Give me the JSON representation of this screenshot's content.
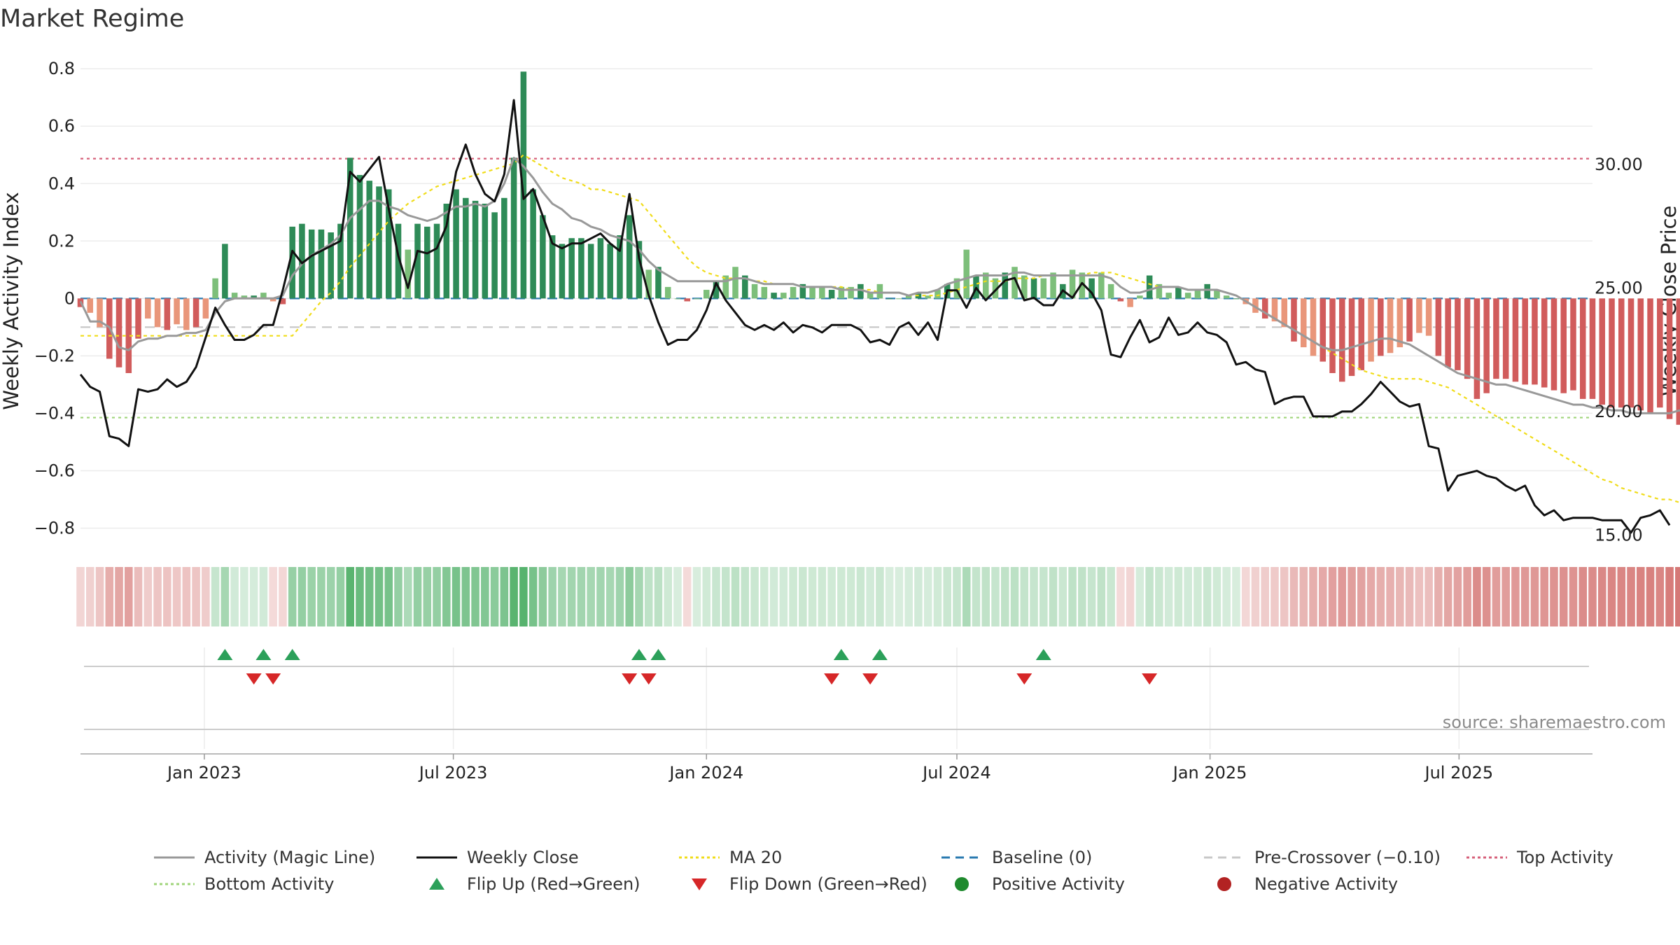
{
  "chart_data": {
    "type": "bar",
    "title": "Market Regime",
    "ylabel": "Weekly Activity Index",
    "y2label": "Weekly Close Price",
    "ylim": [
      -0.85,
      0.82
    ],
    "y2lim": [
      14.7,
      34.1
    ],
    "y_ticks": [
      -0.8,
      -0.6,
      -0.4,
      -0.2,
      0,
      0.2,
      0.4,
      0.6,
      0.8
    ],
    "y_tick_labels": [
      "−0.8",
      "−0.6",
      "−0.4",
      "−0.2",
      "0",
      "0.2",
      "0.4",
      "0.6",
      "0.8"
    ],
    "y2_ticks": [
      15,
      20,
      25,
      30
    ],
    "y2_tick_labels": [
      "15.00",
      "20.00",
      "25.00",
      "30.00"
    ],
    "x_range": [
      "2022-10-03",
      "2025-10-06"
    ],
    "x_ticks": [
      "2023-01-01",
      "2023-07-01",
      "2024-01-01",
      "2024-07-01",
      "2025-01-01",
      "2025-07-01"
    ],
    "x_tick_labels": [
      "Jan 2023",
      "Jul 2023",
      "Jan 2024",
      "Jul 2024",
      "Jan 2025",
      "Jul 2025"
    ],
    "grid": true,
    "legend_placement": "bottom",
    "reference_lines": [
      {
        "name": "Top Activity",
        "value": 0.487,
        "color": "#d6607a"
      },
      {
        "name": "Bottom Activity",
        "value": -0.415,
        "color": "#9fd47a"
      },
      {
        "name": "Pre-Crossover (−0.10)",
        "value": -0.1,
        "color": "#c8c8c8"
      },
      {
        "name": "Baseline (0)",
        "value": 0,
        "color": "#2a7ab0"
      }
    ],
    "week_start": "2022-10-03",
    "activity": [
      -0.03,
      -0.05,
      -0.1,
      -0.21,
      -0.24,
      -0.26,
      -0.14,
      -0.07,
      -0.1,
      -0.11,
      -0.09,
      -0.11,
      -0.1,
      -0.07,
      0.07,
      0.19,
      0.02,
      0.01,
      0.01,
      0.02,
      -0.01,
      -0.02,
      0.25,
      0.26,
      0.24,
      0.24,
      0.23,
      0.26,
      0.49,
      0.43,
      0.41,
      0.39,
      0.38,
      0.26,
      0.17,
      0.26,
      0.25,
      0.26,
      0.33,
      0.38,
      0.35,
      0.34,
      0.33,
      0.3,
      0.35,
      0.49,
      0.79,
      0.38,
      0.29,
      0.22,
      0.19,
      0.21,
      0.21,
      0.19,
      0.21,
      0.19,
      0.22,
      0.29,
      0.2,
      0.1,
      0.11,
      0.04,
      0.0,
      -0.01,
      0.0,
      0.03,
      0.06,
      0.08,
      0.11,
      0.08,
      0.05,
      0.04,
      0.02,
      0.02,
      0.04,
      0.05,
      0.04,
      0.04,
      0.03,
      0.04,
      0.04,
      0.05,
      0.02,
      0.05,
      0.0,
      0.0,
      0.01,
      0.02,
      0.01,
      0.03,
      0.05,
      0.07,
      0.17,
      0.08,
      0.09,
      0.07,
      0.09,
      0.11,
      0.08,
      0.07,
      0.07,
      0.09,
      0.05,
      0.1,
      0.09,
      0.07,
      0.09,
      0.05,
      -0.01,
      -0.03,
      0.01,
      0.08,
      0.05,
      0.02,
      0.04,
      0.02,
      0.03,
      0.05,
      0.03,
      0.01,
      0.0,
      -0.02,
      -0.05,
      -0.07,
      -0.08,
      -0.1,
      -0.15,
      -0.17,
      -0.2,
      -0.22,
      -0.26,
      -0.29,
      -0.27,
      -0.25,
      -0.22,
      -0.2,
      -0.19,
      -0.17,
      -0.15,
      -0.12,
      -0.13,
      -0.2,
      -0.24,
      -0.25,
      -0.28,
      -0.35,
      -0.33,
      -0.28,
      -0.28,
      -0.29,
      -0.3,
      -0.3,
      -0.31,
      -0.32,
      -0.33,
      -0.32,
      -0.35,
      -0.35,
      -0.37,
      -0.38,
      -0.38,
      -0.38,
      -0.39,
      -0.4,
      -0.38,
      -0.42,
      -0.44,
      -0.41,
      -0.42,
      -0.39,
      -0.38,
      -0.42
    ],
    "magic_line": [
      -0.01,
      -0.08,
      -0.08,
      -0.1,
      -0.17,
      -0.18,
      -0.15,
      -0.14,
      -0.14,
      -0.13,
      -0.13,
      -0.12,
      -0.12,
      -0.11,
      -0.05,
      -0.01,
      0.0,
      0.0,
      0.0,
      0.0,
      0.0,
      0.01,
      0.08,
      0.12,
      0.15,
      0.17,
      0.19,
      0.22,
      0.28,
      0.31,
      0.34,
      0.34,
      0.32,
      0.31,
      0.29,
      0.28,
      0.27,
      0.28,
      0.3,
      0.32,
      0.32,
      0.33,
      0.32,
      0.34,
      0.4,
      0.49,
      0.46,
      0.42,
      0.37,
      0.33,
      0.31,
      0.28,
      0.27,
      0.25,
      0.24,
      0.22,
      0.21,
      0.2,
      0.17,
      0.13,
      0.1,
      0.08,
      0.06,
      0.06,
      0.06,
      0.06,
      0.06,
      0.06,
      0.07,
      0.07,
      0.06,
      0.05,
      0.05,
      0.05,
      0.05,
      0.04,
      0.04,
      0.04,
      0.04,
      0.03,
      0.03,
      0.03,
      0.02,
      0.02,
      0.02,
      0.02,
      0.01,
      0.02,
      0.02,
      0.03,
      0.05,
      0.06,
      0.07,
      0.08,
      0.08,
      0.08,
      0.08,
      0.09,
      0.09,
      0.08,
      0.08,
      0.08,
      0.08,
      0.08,
      0.08,
      0.08,
      0.08,
      0.07,
      0.04,
      0.02,
      0.02,
      0.03,
      0.04,
      0.04,
      0.04,
      0.03,
      0.03,
      0.03,
      0.03,
      0.02,
      0.01,
      -0.01,
      -0.03,
      -0.05,
      -0.07,
      -0.09,
      -0.11,
      -0.13,
      -0.15,
      -0.17,
      -0.18,
      -0.18,
      -0.17,
      -0.16,
      -0.15,
      -0.14,
      -0.14,
      -0.15,
      -0.16,
      -0.18,
      -0.2,
      -0.22,
      -0.24,
      -0.26,
      -0.27,
      -0.28,
      -0.29,
      -0.3,
      -0.3,
      -0.31,
      -0.32,
      -0.33,
      -0.34,
      -0.35,
      -0.36,
      -0.37,
      -0.37,
      -0.38,
      -0.38,
      -0.39,
      -0.39,
      -0.4,
      -0.4,
      -0.4,
      -0.4,
      -0.4,
      -0.39,
      -0.4
    ],
    "ma20": [
      -0.13,
      -0.13,
      -0.13,
      -0.13,
      -0.13,
      -0.13,
      -0.13,
      -0.13,
      -0.13,
      -0.13,
      -0.13,
      -0.13,
      -0.13,
      -0.13,
      -0.13,
      -0.13,
      -0.13,
      -0.13,
      -0.13,
      -0.13,
      -0.13,
      -0.13,
      -0.13,
      -0.09,
      -0.05,
      -0.01,
      0.02,
      0.06,
      0.11,
      0.15,
      0.19,
      0.23,
      0.27,
      0.3,
      0.33,
      0.35,
      0.37,
      0.39,
      0.4,
      0.41,
      0.42,
      0.43,
      0.44,
      0.45,
      0.46,
      0.47,
      0.5,
      0.48,
      0.46,
      0.44,
      0.42,
      0.41,
      0.4,
      0.38,
      0.38,
      0.37,
      0.36,
      0.35,
      0.34,
      0.3,
      0.26,
      0.22,
      0.18,
      0.14,
      0.11,
      0.09,
      0.08,
      0.07,
      0.07,
      0.07,
      0.06,
      0.06,
      0.05,
      0.05,
      0.05,
      0.04,
      0.04,
      0.04,
      0.04,
      0.04,
      0.03,
      0.03,
      0.03,
      0.02,
      0.02,
      0.02,
      0.01,
      0.01,
      0.01,
      0.01,
      0.02,
      0.03,
      0.04,
      0.05,
      0.06,
      0.06,
      0.06,
      0.07,
      0.07,
      0.07,
      0.08,
      0.08,
      0.08,
      0.08,
      0.08,
      0.09,
      0.09,
      0.09,
      0.08,
      0.07,
      0.06,
      0.05,
      0.04,
      0.04,
      0.04,
      0.03,
      0.03,
      0.03,
      0.03,
      0.02,
      0.01,
      -0.01,
      -0.03,
      -0.05,
      -0.07,
      -0.09,
      -0.11,
      -0.13,
      -0.15,
      -0.17,
      -0.19,
      -0.21,
      -0.23,
      -0.25,
      -0.26,
      -0.27,
      -0.28,
      -0.28,
      -0.28,
      -0.28,
      -0.29,
      -0.3,
      -0.31,
      -0.33,
      -0.35,
      -0.37,
      -0.39,
      -0.41,
      -0.43,
      -0.45,
      -0.47,
      -0.49,
      -0.51,
      -0.53,
      -0.55,
      -0.57,
      -0.59,
      -0.61,
      -0.63,
      -0.64,
      -0.66,
      -0.67,
      -0.68,
      -0.69,
      -0.7,
      -0.7,
      -0.71,
      -0.72
    ],
    "weekly_close": [
      21.5,
      21.0,
      20.8,
      19.0,
      18.9,
      18.6,
      20.9,
      20.8,
      20.9,
      21.3,
      21.0,
      21.2,
      21.8,
      23.0,
      24.2,
      23.5,
      22.9,
      22.9,
      23.1,
      23.5,
      23.5,
      24.9,
      26.5,
      26.0,
      26.3,
      26.5,
      26.7,
      26.9,
      29.7,
      29.3,
      29.8,
      30.3,
      28.2,
      26.3,
      25.0,
      26.5,
      26.4,
      26.6,
      27.5,
      29.7,
      30.8,
      29.6,
      28.8,
      28.5,
      29.6,
      32.6,
      28.6,
      29.0,
      27.9,
      26.8,
      26.6,
      26.8,
      26.8,
      27.0,
      27.2,
      26.8,
      26.5,
      28.8,
      26.2,
      24.7,
      23.6,
      22.7,
      22.9,
      22.9,
      23.3,
      24.1,
      25.2,
      24.5,
      24.0,
      23.5,
      23.3,
      23.5,
      23.3,
      23.6,
      23.2,
      23.5,
      23.4,
      23.2,
      23.5,
      23.5,
      23.5,
      23.3,
      22.8,
      22.9,
      22.7,
      23.4,
      23.6,
      23.1,
      23.6,
      22.9,
      24.9,
      24.9,
      24.2,
      25.0,
      24.5,
      24.9,
      25.3,
      25.4,
      24.5,
      24.6,
      24.3,
      24.3,
      24.9,
      24.6,
      25.2,
      24.8,
      24.1,
      22.3,
      22.2,
      23.0,
      23.7,
      22.8,
      23.0,
      23.8,
      23.1,
      23.2,
      23.6,
      23.2,
      23.1,
      22.8,
      21.9,
      22.0,
      21.7,
      21.6,
      20.3,
      20.5,
      20.6,
      20.6,
      19.8,
      19.8,
      19.8,
      20.0,
      20.0,
      20.3,
      20.7,
      21.2,
      20.8,
      20.4,
      20.2,
      20.3,
      18.6,
      18.5,
      16.8,
      17.4,
      17.5,
      17.6,
      17.4,
      17.3,
      17.0,
      16.8,
      17.0,
      16.2,
      15.8,
      16.0,
      15.6,
      15.7,
      15.7,
      15.7,
      15.6,
      15.6,
      15.6,
      15.1,
      15.7,
      15.8,
      16.0,
      15.4
    ],
    "regime_strip_intensity": "derived from activity",
    "flip_up_weeks": [
      15,
      19,
      22,
      58,
      60,
      79,
      83,
      100
    ],
    "flip_down_weeks": [
      18,
      20,
      57,
      59,
      78,
      82,
      98,
      111
    ],
    "colors": {
      "strong_green": "#2e8b57",
      "light_green": "#7dbf7a",
      "strong_red": "#d15c5c",
      "light_red": "#e9967a",
      "magic_line": "#999999",
      "weekly_close": "#111111",
      "ma20": "#f0dc1a",
      "flip_up": "#2ca05a",
      "flip_down": "#d62728",
      "positive_dot": "#1f8a2e",
      "negative_dot": "#b22222"
    }
  },
  "legend": [
    {
      "label": "Activity (Magic Line)",
      "kind": "line",
      "color": "#999999",
      "dash": ""
    },
    {
      "label": "Weekly Close",
      "kind": "line",
      "color": "#111111",
      "dash": ""
    },
    {
      "label": "MA 20",
      "kind": "line",
      "color": "#f0dc1a",
      "dash": "4 4"
    },
    {
      "label": "Baseline (0)",
      "kind": "line",
      "color": "#2a7ab0",
      "dash": "12 8"
    },
    {
      "label": "Pre-Crossover (−0.10)",
      "kind": "line",
      "color": "#c8c8c8",
      "dash": "12 8"
    },
    {
      "label": "Top Activity",
      "kind": "line",
      "color": "#d6607a",
      "dash": "4 4"
    },
    {
      "label": "Bottom Activity",
      "kind": "line",
      "color": "#9fd47a",
      "dash": "4 4"
    },
    {
      "label": "Flip Up (Red→Green)",
      "kind": "tri-up",
      "color": "#2ca05a"
    },
    {
      "label": "Flip Down (Green→Red)",
      "kind": "tri-down",
      "color": "#d62728"
    },
    {
      "label": "Positive Activity",
      "kind": "dot",
      "color": "#1f8a2e"
    },
    {
      "label": "Negative Activity",
      "kind": "dot",
      "color": "#b22222"
    }
  ],
  "source": "source: sharemaestro.com"
}
